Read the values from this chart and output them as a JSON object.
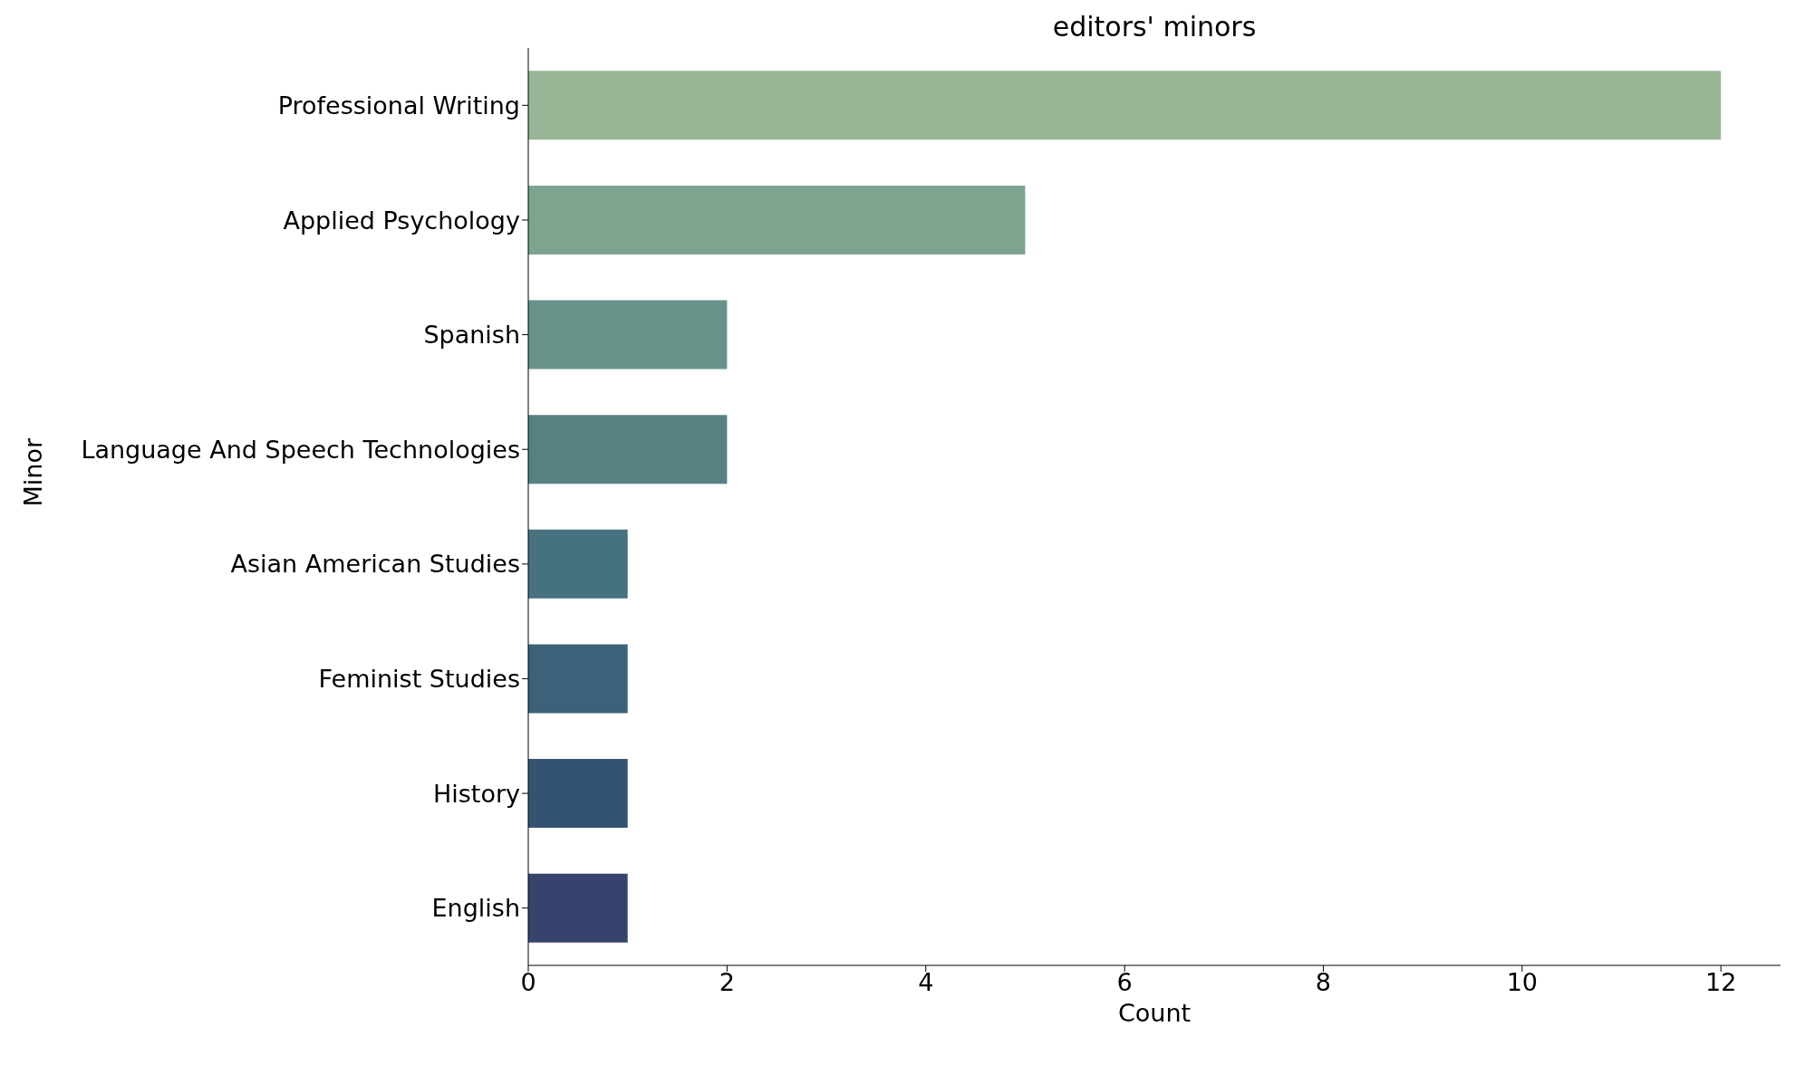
{
  "chart_data": {
    "type": "bar",
    "orientation": "horizontal",
    "title": "editors' minors",
    "xlabel": "Count",
    "ylabel": "Minor",
    "categories": [
      "Professional Writing",
      "Applied Psychology",
      "Spanish",
      "Language And Speech Technologies",
      "Asian American Studies",
      "Feminist Studies",
      "History",
      "English"
    ],
    "values": [
      12,
      5,
      2,
      2,
      1,
      1,
      1,
      1
    ],
    "colors": [
      "#97b696",
      "#7ea48f",
      "#67928a",
      "#558183",
      "#46717e",
      "#3b6278",
      "#345372",
      "#36446d"
    ],
    "xlim": [
      0,
      12.6
    ],
    "xticks": [
      0,
      2,
      4,
      6,
      8,
      10,
      12
    ],
    "grid": false
  }
}
